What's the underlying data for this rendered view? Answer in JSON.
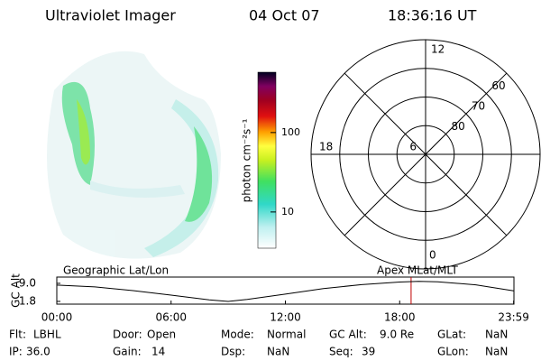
{
  "header": {
    "title": "Ultraviolet Imager",
    "date": "04 Oct 07",
    "time": "18:36:16 UT"
  },
  "colorbar": {
    "label": "photon cm⁻²s⁻¹",
    "log_scale": true,
    "lim": [
      3.5,
      575
    ],
    "ticks": [
      10,
      100
    ]
  },
  "polar": {
    "lat_lim": [
      90,
      50
    ],
    "hours": [
      12,
      18,
      6,
      0
    ],
    "lat_rings": [
      80,
      70,
      60
    ]
  },
  "timeline": {
    "title_left": "Geographic Lat/Lon",
    "title_right": "Apex MLat/MLT",
    "ylabel": "GC Alt",
    "xlim": [
      0,
      24
    ],
    "ylim": [
      0.7,
      11.5
    ],
    "yticks": [
      {
        "value": 9,
        "label": "9.0"
      },
      1.8
    ],
    "xticks": [
      {
        "value": 0,
        "label": "00:00"
      },
      {
        "value": 6,
        "label": "06:00"
      },
      {
        "value": 12,
        "label": "12:00"
      },
      {
        "value": 18,
        "label": "18:00"
      },
      {
        "value": 23.983,
        "label": "23:59"
      }
    ],
    "x": [
      0,
      2,
      4,
      6,
      8,
      9,
      10,
      12,
      14,
      16,
      18,
      19,
      20,
      22,
      23.983
    ],
    "values": [
      8.3,
      7.6,
      6.1,
      4.3,
      2.4,
      1.8,
      2.6,
      4.7,
      6.9,
      8.5,
      9.5,
      9.8,
      9.6,
      8.4,
      6.0
    ],
    "color": "#000000",
    "marker_x": 18.6,
    "marker_color": "#c00000"
  },
  "info": [
    [
      [
        "Flt:",
        "LBHL"
      ],
      [
        "Door:",
        "Open"
      ],
      [
        "Mode:",
        "Normal"
      ],
      [
        "GC Alt:",
        "9.0 Re"
      ],
      [
        "GLat:",
        "NaN"
      ]
    ],
    [
      [
        "IP:",
        "36.0"
      ],
      [
        "Gain:",
        "14"
      ],
      [
        "Dsp:",
        "NaN"
      ],
      [
        "Seq:",
        "39"
      ],
      [
        "GLon:",
        "NaN"
      ]
    ]
  ]
}
